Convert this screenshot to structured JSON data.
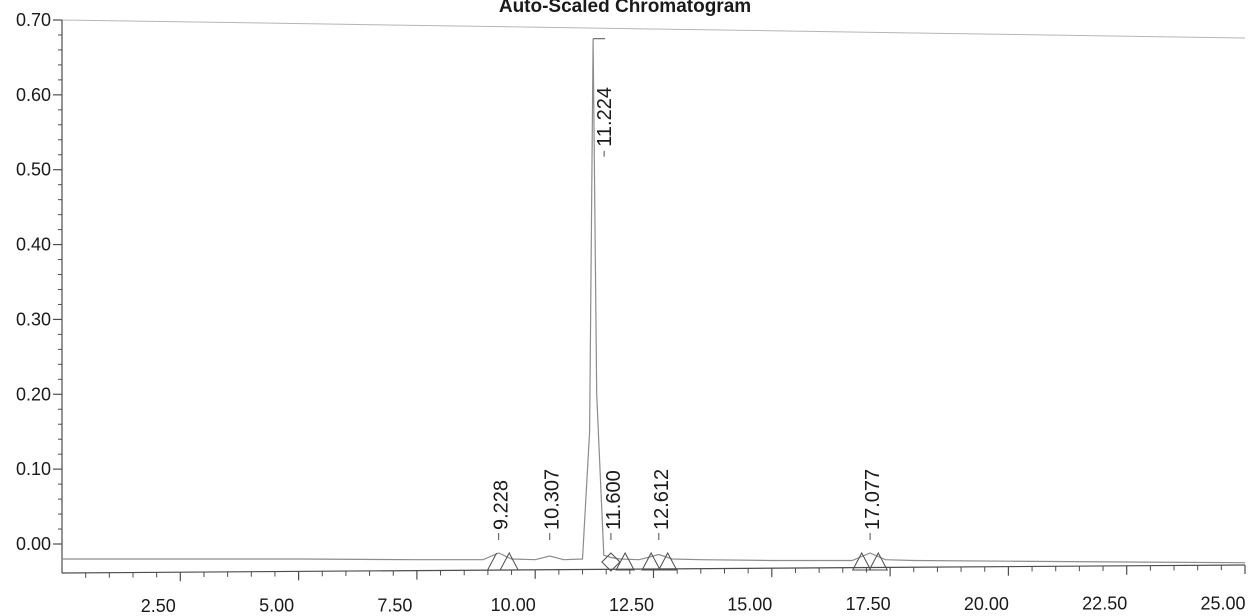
{
  "chart_data": {
    "type": "line",
    "title": "Auto-Scaled Chromatogram",
    "xlabel": "",
    "ylabel": "",
    "xlim": [
      0,
      25
    ],
    "ylim": [
      -0.04,
      0.7
    ],
    "x_ticks": [
      2.5,
      5,
      7.5,
      10,
      12.5,
      15,
      17.5,
      20,
      22.5,
      25
    ],
    "x_tick_labels": [
      "2.50",
      "5.00",
      "7.50",
      "10.00",
      "12.50",
      "15.00",
      "17.50",
      "20.00",
      "22.50",
      "25.00"
    ],
    "y_ticks": [
      0,
      0.1,
      0.2,
      0.3,
      0.4,
      0.5,
      0.6,
      0.7
    ],
    "y_tick_labels": [
      "0.00",
      "0.10",
      "0.20",
      "0.30",
      "0.40",
      "0.50",
      "0.60",
      "0.70"
    ],
    "grid": false,
    "legend": "none",
    "colors": {
      "trace": "#8c8c8c",
      "axis": "#4d4d4d",
      "text": "#1a1a1a"
    },
    "series": [
      {
        "x": [
          0,
          5,
          7.5,
          8.9,
          9.228,
          9.5,
          10.0,
          10.307,
          10.6,
          11.0,
          11.15,
          11.224,
          11.3,
          11.45,
          11.6,
          11.8,
          12.2,
          12.612,
          12.9,
          13.5,
          15,
          16.7,
          17.077,
          17.4,
          18,
          20,
          22.5,
          25
        ],
        "y": [
          -0.02,
          -0.02,
          -0.021,
          -0.021,
          -0.012,
          -0.02,
          -0.021,
          -0.016,
          -0.021,
          -0.02,
          0.15,
          0.675,
          0.2,
          -0.015,
          -0.018,
          -0.02,
          -0.021,
          -0.014,
          -0.02,
          -0.021,
          -0.022,
          -0.022,
          -0.012,
          -0.021,
          -0.022,
          -0.023,
          -0.024,
          -0.025
        ]
      }
    ],
    "peaks": [
      {
        "label": "9.228",
        "x": 9.228,
        "y": -0.012
      },
      {
        "label": "10.307",
        "x": 10.307,
        "y": -0.016
      },
      {
        "label": "11.224",
        "x": 11.224,
        "y": 0.675
      },
      {
        "label": "11.600",
        "x": 11.6,
        "y": -0.018
      },
      {
        "label": "12.612",
        "x": 12.612,
        "y": -0.014
      },
      {
        "label": "17.077",
        "x": 17.077,
        "y": -0.012
      }
    ],
    "markers": [
      {
        "shape": "slash",
        "x": 9.1
      },
      {
        "shape": "triangle",
        "x": 9.45
      },
      {
        "shape": "diamond",
        "x": 11.6
      },
      {
        "shape": "triangle",
        "x": 11.9
      },
      {
        "shape": "triangle",
        "x": 12.45
      },
      {
        "shape": "triangle",
        "x": 12.8
      },
      {
        "shape": "triangle",
        "x": 16.9
      },
      {
        "shape": "triangle",
        "x": 17.25
      }
    ]
  }
}
